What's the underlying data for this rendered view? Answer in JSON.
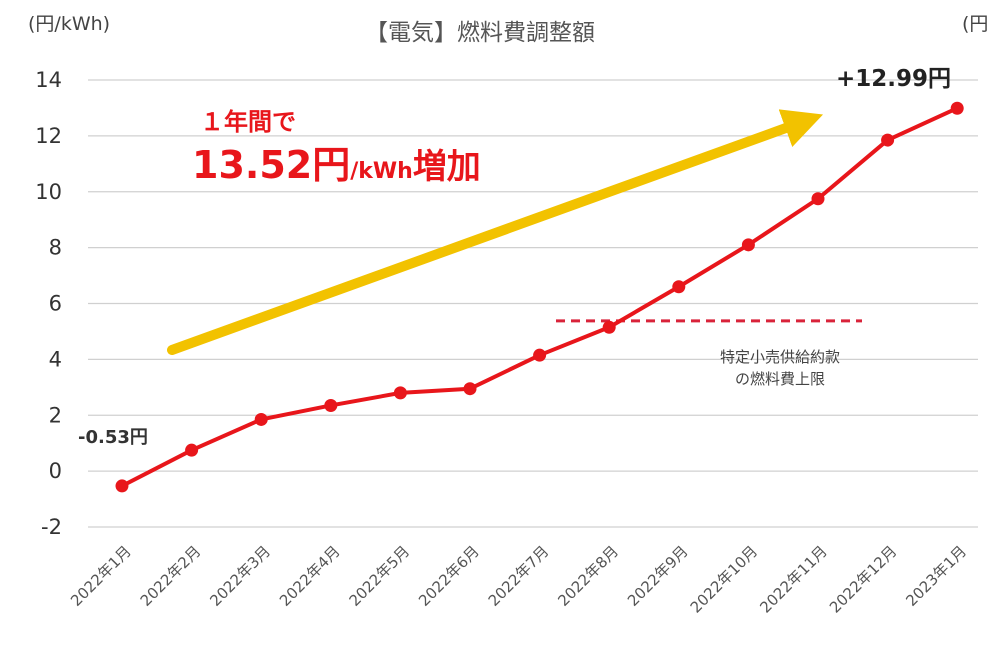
{
  "chart_data": {
    "type": "line",
    "title": "【電気】燃料費調整額",
    "ylabel": "(円/kWh)",
    "ylabel_right": "(円",
    "ylim": [
      -2,
      14
    ],
    "yticks": [
      "14",
      "12",
      "10",
      "8",
      "6",
      "4",
      "2",
      "0",
      "-2"
    ],
    "grid": true,
    "categories": [
      "2022年1月",
      "2022年2月",
      "2022年3月",
      "2022年4月",
      "2022年5月",
      "2022年6月",
      "2022年7月",
      "2022年8月",
      "2022年9月",
      "2022年10月",
      "2022年11月",
      "2022年12月",
      "2023年1月"
    ],
    "series": [
      {
        "values": [
          -0.53,
          0.75,
          1.85,
          2.35,
          2.8,
          2.95,
          4.15,
          5.15,
          6.6,
          8.1,
          9.75,
          11.85,
          12.99
        ]
      }
    ],
    "colors": {
      "line": "#e8161b",
      "arrow": "#f2c200",
      "dashed": "#d9233a",
      "grid": "#d0d0d0",
      "text": "#333333"
    },
    "annotations": {
      "start_label": "-0.53円",
      "end_label": "+12.99円",
      "increase_line1": "１年間で",
      "increase_value": "13.52円",
      "increase_unit": "/kWh",
      "increase_suffix": "増加",
      "cap_value": 5.38,
      "cap_line1": "特定小売供給約款",
      "cap_line2": "の燃料費上限"
    }
  }
}
